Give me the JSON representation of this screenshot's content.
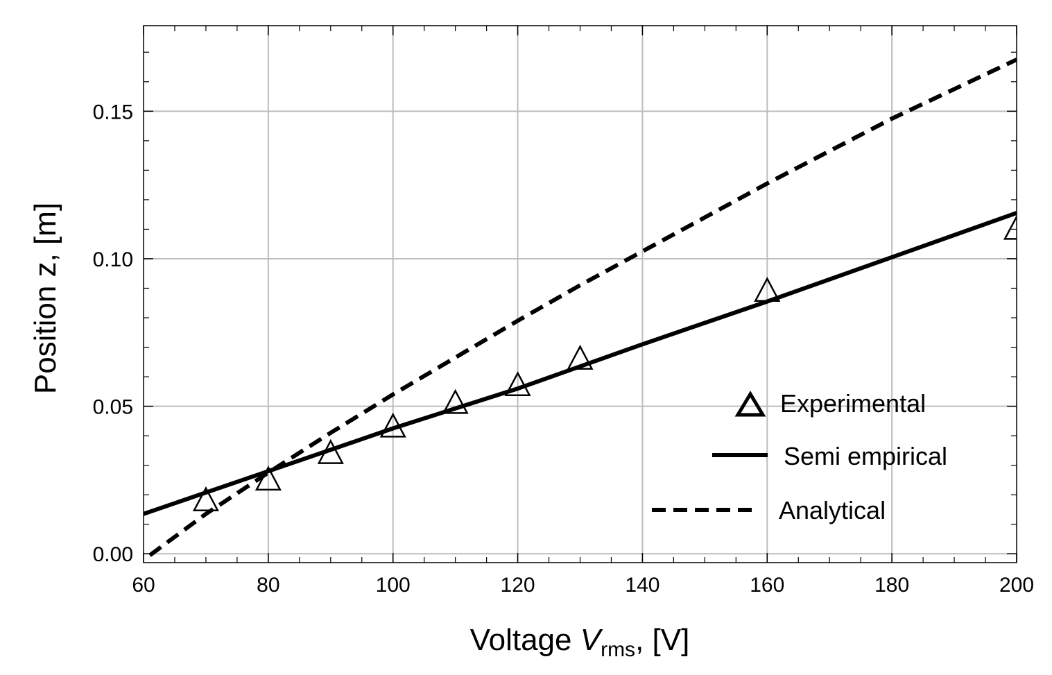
{
  "chart_data": {
    "type": "line",
    "title": "",
    "xlabel": {
      "prefix": "Voltage ",
      "symbol": "V",
      "subscript": "rms",
      "suffix": ", [V]"
    },
    "ylabel": "Position z, [m]",
    "xlim": [
      60,
      200
    ],
    "ylim": [
      -0.003,
      0.179
    ],
    "xticks": [
      60,
      80,
      100,
      120,
      140,
      160,
      180,
      200
    ],
    "xtick_labels": [
      "60",
      "80",
      "100",
      "120",
      "140",
      "160",
      "180",
      "200"
    ],
    "yticks": [
      0.0,
      0.05,
      0.1,
      0.15
    ],
    "ytick_labels": [
      "0.00",
      "0.05",
      "0.10",
      "0.15"
    ],
    "grid": true,
    "legend_position": "lower-right",
    "series": [
      {
        "name": "Experimental",
        "style": "triangle-markers",
        "x": [
          70,
          80,
          90,
          100,
          110,
          120,
          130,
          160,
          200
        ],
        "y": [
          0.018,
          0.025,
          0.034,
          0.043,
          0.051,
          0.057,
          0.066,
          0.089,
          0.11
        ]
      },
      {
        "name": "Semi empirical",
        "style": "solid",
        "x": [
          60,
          80,
          100,
          120,
          140,
          160,
          180,
          200
        ],
        "y": [
          0.0135,
          0.028,
          0.0425,
          0.056,
          0.071,
          0.0855,
          0.1005,
          0.1155
        ]
      },
      {
        "name": "Analytical",
        "style": "dashed",
        "x": [
          61,
          70,
          80,
          90,
          100,
          110,
          120,
          130,
          140,
          150,
          160,
          170,
          180,
          190,
          200
        ],
        "y": [
          -0.0005,
          0.0135,
          0.0275,
          0.041,
          0.054,
          0.0665,
          0.079,
          0.091,
          0.1025,
          0.114,
          0.1255,
          0.1365,
          0.1475,
          0.1575,
          0.1675
        ]
      }
    ]
  }
}
